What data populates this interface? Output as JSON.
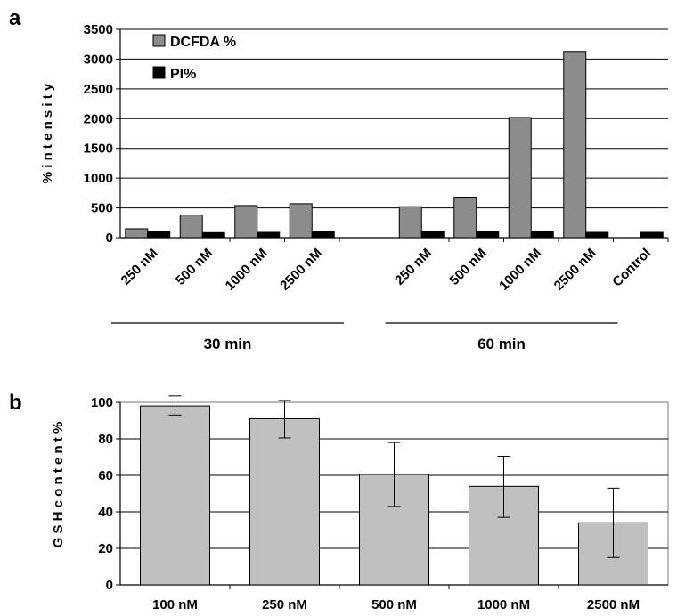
{
  "colors": {
    "dcfda": "#8c8c8c",
    "pi": "#000000",
    "gsh": "#c0c0c0",
    "grid": "#000000"
  },
  "chart_data": [
    {
      "panel": "a",
      "type": "bar",
      "ylabel": "% i n t e n s i t y",
      "ylim": [
        0,
        3500
      ],
      "yticks": [
        "0",
        "500",
        "1000",
        "1500",
        "2000",
        "2500",
        "3000",
        "3500"
      ],
      "grid": true,
      "legend_position": "top-left",
      "categories": [
        "250 nM",
        "500 nM",
        "1000 nM",
        "2500 nM",
        "",
        "250 nM",
        "500 nM",
        "1000 nM",
        "2500 nM",
        "Control"
      ],
      "series": [
        {
          "name": "DCFDA  %",
          "values": [
            150,
            380,
            540,
            570,
            null,
            520,
            680,
            2020,
            3130,
            null
          ]
        },
        {
          "name": "PI%",
          "values": [
            110,
            85,
            90,
            110,
            null,
            110,
            110,
            110,
            90,
            90
          ]
        }
      ],
      "groups": [
        {
          "label": "30 min",
          "from": 0,
          "to": 3
        },
        {
          "label": "60 min",
          "from": 5,
          "to": 8
        }
      ]
    },
    {
      "panel": "b",
      "type": "bar",
      "ylabel": "G S H c o n t e n t  %",
      "ylim": [
        0,
        100
      ],
      "yticks": [
        "0",
        "20",
        "40",
        "60",
        "80",
        "100"
      ],
      "grid": true,
      "categories": [
        "100 nM",
        "250 nM",
        "500 nM",
        "1000 nM",
        "2500 nM"
      ],
      "values": [
        98,
        91,
        60.5,
        54,
        34
      ],
      "error_low": [
        93,
        80.5,
        43,
        37,
        15
      ],
      "error_high": [
        103.5,
        101,
        78,
        70.5,
        53
      ]
    }
  ]
}
